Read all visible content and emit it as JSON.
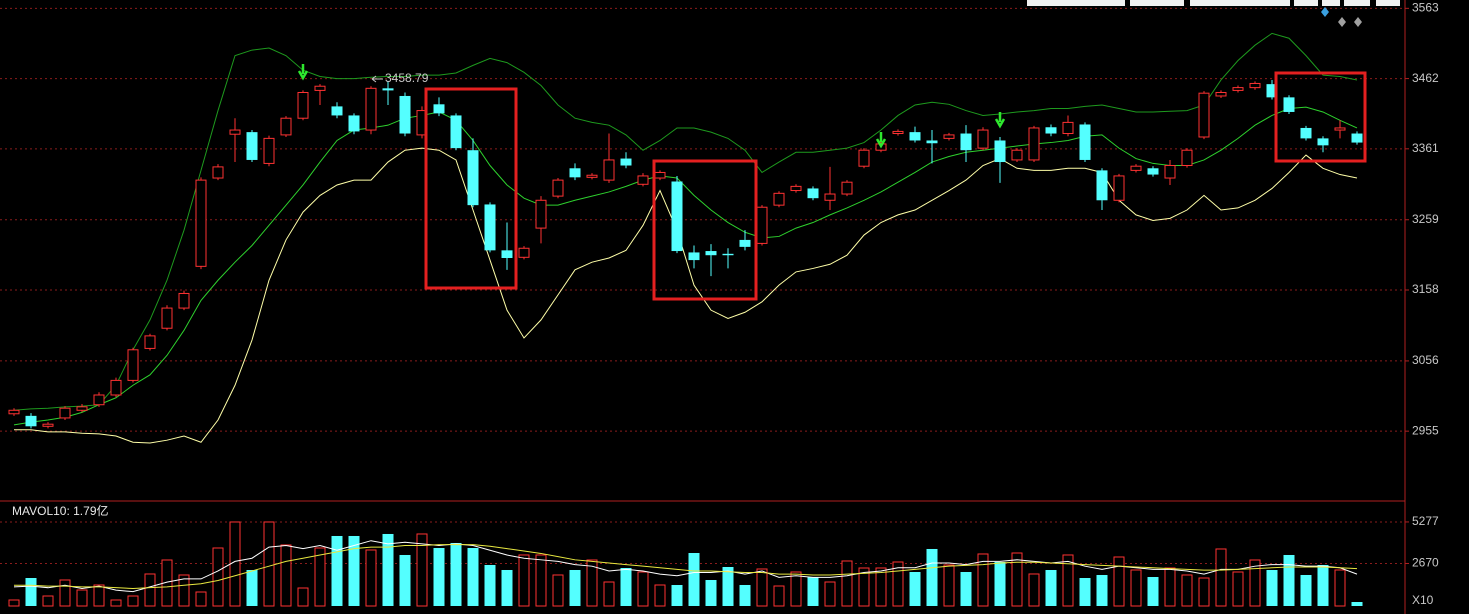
{
  "chart_data": {
    "type": "candlestick",
    "ylim": [
      2856,
      3575
    ],
    "yticks": [
      3563,
      3462,
      3361,
      3259,
      3158,
      3056,
      2955
    ],
    "grid": true,
    "up_color": "#ff3232",
    "down_color": "#54ffff",
    "high_label": "3458.79",
    "categories": [
      null,
      null,
      null,
      null,
      null,
      null,
      null,
      null,
      null,
      null,
      null,
      null,
      null,
      null,
      null,
      null,
      null,
      null,
      null,
      null,
      null,
      null,
      null,
      null,
      null,
      null,
      null,
      null,
      null,
      null,
      null,
      null,
      null,
      null,
      null,
      null,
      null,
      null,
      null,
      null,
      null,
      null,
      null,
      null,
      null,
      null,
      null,
      null,
      null,
      null,
      null,
      null,
      null,
      null,
      null,
      null,
      null,
      null,
      null,
      null,
      null,
      null,
      null,
      null,
      null,
      null,
      null,
      null,
      null,
      null,
      null,
      null,
      null,
      null,
      null,
      null,
      null,
      null,
      null,
      null
    ],
    "open": [
      2980,
      2977,
      2962,
      2974,
      2985,
      2993,
      3007,
      3028,
      3074,
      3103,
      3132,
      3192,
      3319,
      3382,
      3385,
      3340,
      3381,
      3405,
      3445,
      3422,
      3409,
      3388,
      3448,
      3437,
      3381,
      3425,
      3409,
      3359,
      3281,
      3215,
      3205,
      3247,
      3293,
      3333,
      3320,
      3316,
      3347,
      3310,
      3319,
      3314,
      3212,
      3214,
      3210,
      3230,
      3225,
      3280,
      3301,
      3304,
      3287,
      3296,
      3336,
      3359,
      3383,
      3385,
      3373,
      3376,
      3383,
      3362,
      3373,
      3345,
      3345,
      3392,
      3383,
      3396,
      3330,
      3287,
      3330,
      3333,
      3319,
      3337,
      3378,
      3437,
      3445,
      3449,
      3454,
      3435,
      3391,
      3376,
      3388,
      3383
    ],
    "high": [
      2988,
      2981,
      2968,
      2991,
      2994,
      3011,
      3032,
      3075,
      3095,
      3136,
      3157,
      3320,
      3339,
      3405,
      3388,
      3380,
      3408,
      3445,
      3454,
      3428,
      3412,
      3451,
      3458.79,
      3442,
      3422,
      3435,
      3412,
      3376,
      3284,
      3255,
      3221,
      3293,
      3319,
      3340,
      3326,
      3383,
      3356,
      3326,
      3330,
      3322,
      3222,
      3224,
      3218,
      3244,
      3280,
      3300,
      3310,
      3307,
      3335,
      3316,
      3362,
      3371,
      3389,
      3393,
      3388,
      3384,
      3395,
      3392,
      3378,
      3362,
      3394,
      3396,
      3409,
      3399,
      3333,
      3325,
      3339,
      3336,
      3345,
      3362,
      3444,
      3445,
      3452,
      3458,
      3460,
      3438,
      3394,
      3379,
      3402,
      3386
    ],
    "low": [
      2977,
      2959,
      2959,
      2971,
      2982,
      2990,
      3004,
      3025,
      3071,
      3100,
      3129,
      3188,
      3316,
      3342,
      3342,
      3336,
      3378,
      3402,
      3424,
      3405,
      3382,
      3382,
      3424,
      3379,
      3376,
      3408,
      3359,
      3277,
      3212,
      3187,
      3202,
      3225,
      3290,
      3316,
      3317,
      3312,
      3333,
      3307,
      3316,
      3211,
      3189,
      3178,
      3189,
      3215,
      3222,
      3277,
      3298,
      3287,
      3273,
      3293,
      3333,
      3356,
      3380,
      3370,
      3340,
      3373,
      3342,
      3359,
      3312,
      3342,
      3342,
      3379,
      3379,
      3342,
      3273,
      3284,
      3327,
      3321,
      3309,
      3334,
      3375,
      3434,
      3442,
      3446,
      3432,
      3411,
      3373,
      3356,
      3376,
      3367
    ],
    "close": [
      2985,
      2962,
      2965,
      2988,
      2990,
      3007,
      3028,
      3072,
      3092,
      3132,
      3153,
      3316,
      3335,
      3388,
      3345,
      3376,
      3405,
      3442,
      3451,
      3409,
      3386,
      3448,
      3445,
      3383,
      3416,
      3412,
      3362,
      3280,
      3215,
      3204,
      3218,
      3287,
      3316,
      3320,
      3323,
      3345,
      3337,
      3322,
      3327,
      3214,
      3201,
      3208,
      3208,
      3220,
      3277,
      3297,
      3307,
      3290,
      3296,
      3313,
      3359,
      3368,
      3386,
      3373,
      3369,
      3381,
      3359,
      3388,
      3342,
      3359,
      3391,
      3383,
      3399,
      3345,
      3287,
      3322,
      3336,
      3324,
      3337,
      3359,
      3441,
      3442,
      3449,
      3455,
      3435,
      3414,
      3376,
      3366,
      3391,
      3370
    ],
    "series": [
      {
        "color": "#1e9a1e",
        "values": [
          2985,
          2987,
          2988,
          2990,
          2991,
          2993,
          3021,
          3072,
          3115,
          3172,
          3244,
          3330,
          3416,
          3495,
          3503,
          3506,
          3495,
          3474,
          3465,
          3462,
          3462,
          3464,
          3465,
          3465,
          3467,
          3467,
          3470,
          3481,
          3491,
          3485,
          3471,
          3452,
          3424,
          3405,
          3399,
          3395,
          3381,
          3359,
          3373,
          3391,
          3391,
          3385,
          3376,
          3359,
          3327,
          3342,
          3356,
          3356,
          3359,
          3362,
          3370,
          3388,
          3409,
          3424,
          3428,
          3425,
          3416,
          3409,
          3411,
          3414,
          3416,
          3419,
          3419,
          3422,
          3424,
          3419,
          3414,
          3414,
          3415,
          3416,
          3424,
          3460,
          3488,
          3510,
          3527,
          3520,
          3495,
          3467,
          3465,
          3460
        ]
      },
      {
        "color": "#2ed12e",
        "values": [
          2964,
          2968,
          2971,
          2975,
          2982,
          2993,
          3003,
          3021,
          3036,
          3064,
          3100,
          3143,
          3172,
          3198,
          3222,
          3251,
          3280,
          3309,
          3342,
          3373,
          3388,
          3391,
          3395,
          3405,
          3409,
          3414,
          3402,
          3373,
          3337,
          3309,
          3290,
          3280,
          3280,
          3287,
          3293,
          3299,
          3307,
          3316,
          3322,
          3319,
          3294,
          3273,
          3255,
          3241,
          3233,
          3235,
          3247,
          3255,
          3266,
          3276,
          3287,
          3299,
          3313,
          3327,
          3342,
          3350,
          3356,
          3359,
          3362,
          3365,
          3368,
          3370,
          3373,
          3379,
          3381,
          3362,
          3347,
          3340,
          3337,
          3337,
          3345,
          3359,
          3376,
          3395,
          3409,
          3419,
          3421,
          3414,
          3402,
          3391
        ]
      },
      {
        "color": "#ffffa8",
        "values": [
          2957,
          2957,
          2954,
          2954,
          2952,
          2951,
          2948,
          2939,
          2938,
          2942,
          2948,
          2939,
          2971,
          3021,
          3086,
          3172,
          3230,
          3270,
          3294,
          3309,
          3316,
          3316,
          3342,
          3359,
          3362,
          3359,
          3345,
          3273,
          3201,
          3129,
          3089,
          3115,
          3151,
          3187,
          3198,
          3204,
          3215,
          3251,
          3301,
          3244,
          3165,
          3129,
          3117,
          3126,
          3141,
          3165,
          3184,
          3189,
          3195,
          3208,
          3237,
          3255,
          3266,
          3273,
          3287,
          3301,
          3316,
          3337,
          3347,
          3333,
          3330,
          3330,
          3333,
          3333,
          3327,
          3287,
          3266,
          3258,
          3261,
          3273,
          3294,
          3273,
          3276,
          3287,
          3304,
          3327,
          3352,
          3333,
          3324,
          3319
        ]
      }
    ],
    "volume": {
      "ylim": [
        0,
        6530
      ],
      "yticks": [
        5277,
        2670
      ],
      "unit_label": "X10",
      "mavol_label": "MAVOL10: 1.79亿",
      "values": [
        377,
        1758,
        628,
        1633,
        1005,
        1319,
        377,
        628,
        2010,
        2889,
        1947,
        879,
        3642,
        5275,
        2261,
        5275,
        3831,
        1130,
        3642,
        4396,
        4396,
        3517,
        4522,
        3203,
        4522,
        3642,
        3956,
        3642,
        2575,
        2261,
        3203,
        3203,
        1947,
        2261,
        2889,
        1507,
        2386,
        2135,
        1319,
        1319,
        3328,
        1633,
        2449,
        1319,
        2324,
        1256,
        2135,
        1821,
        1507,
        2826,
        2386,
        2386,
        2763,
        2135,
        3580,
        2575,
        2135,
        3266,
        2763,
        3328,
        2010,
        2261,
        3203,
        1758,
        1947,
        3077,
        2261,
        1821,
        2386,
        1947,
        1758,
        3580,
        2135,
        2889,
        2261,
        3203,
        1947,
        2575,
        2261,
        251
      ],
      "series": [
        {
          "color": "#ffffff",
          "values": [
            1200,
            1250,
            1150,
            1300,
            1100,
            1250,
            1000,
            900,
            1200,
            1500,
            1700,
            1700,
            2200,
            2800,
            3000,
            3700,
            3800,
            3600,
            3800,
            3500,
            3800,
            4100,
            3900,
            4000,
            3900,
            3800,
            3900,
            3800,
            3500,
            3200,
            3000,
            2900,
            2800,
            2600,
            2500,
            2200,
            2300,
            2200,
            2000,
            1900,
            2100,
            2100,
            2200,
            2000,
            2200,
            1800,
            1900,
            1800,
            1800,
            1900,
            2100,
            2200,
            2400,
            2400,
            2700,
            2700,
            2600,
            2800,
            2800,
            2900,
            2800,
            2700,
            2800,
            2500,
            2300,
            2500,
            2400,
            2300,
            2300,
            2200,
            2000,
            2300,
            2300,
            2500,
            2600,
            2600,
            2500,
            2500,
            2400,
            2000
          ]
        },
        {
          "color": "#e8e840",
          "values": [
            1300,
            1300,
            1250,
            1250,
            1200,
            1200,
            1150,
            1100,
            1150,
            1200,
            1300,
            1400,
            1600,
            1900,
            2200,
            2500,
            2800,
            3000,
            3200,
            3400,
            3600,
            3700,
            3700,
            3800,
            3800,
            3850,
            3850,
            3850,
            3750,
            3600,
            3450,
            3300,
            3100,
            2900,
            2800,
            2700,
            2600,
            2500,
            2400,
            2300,
            2200,
            2200,
            2150,
            2100,
            2100,
            2000,
            2000,
            1950,
            1950,
            2000,
            2050,
            2100,
            2200,
            2300,
            2400,
            2500,
            2550,
            2600,
            2700,
            2750,
            2750,
            2700,
            2650,
            2600,
            2550,
            2500,
            2450,
            2400,
            2350,
            2300,
            2250,
            2250,
            2300,
            2350,
            2400,
            2450,
            2450,
            2450,
            2400,
            2350
          ]
        }
      ]
    }
  }
}
